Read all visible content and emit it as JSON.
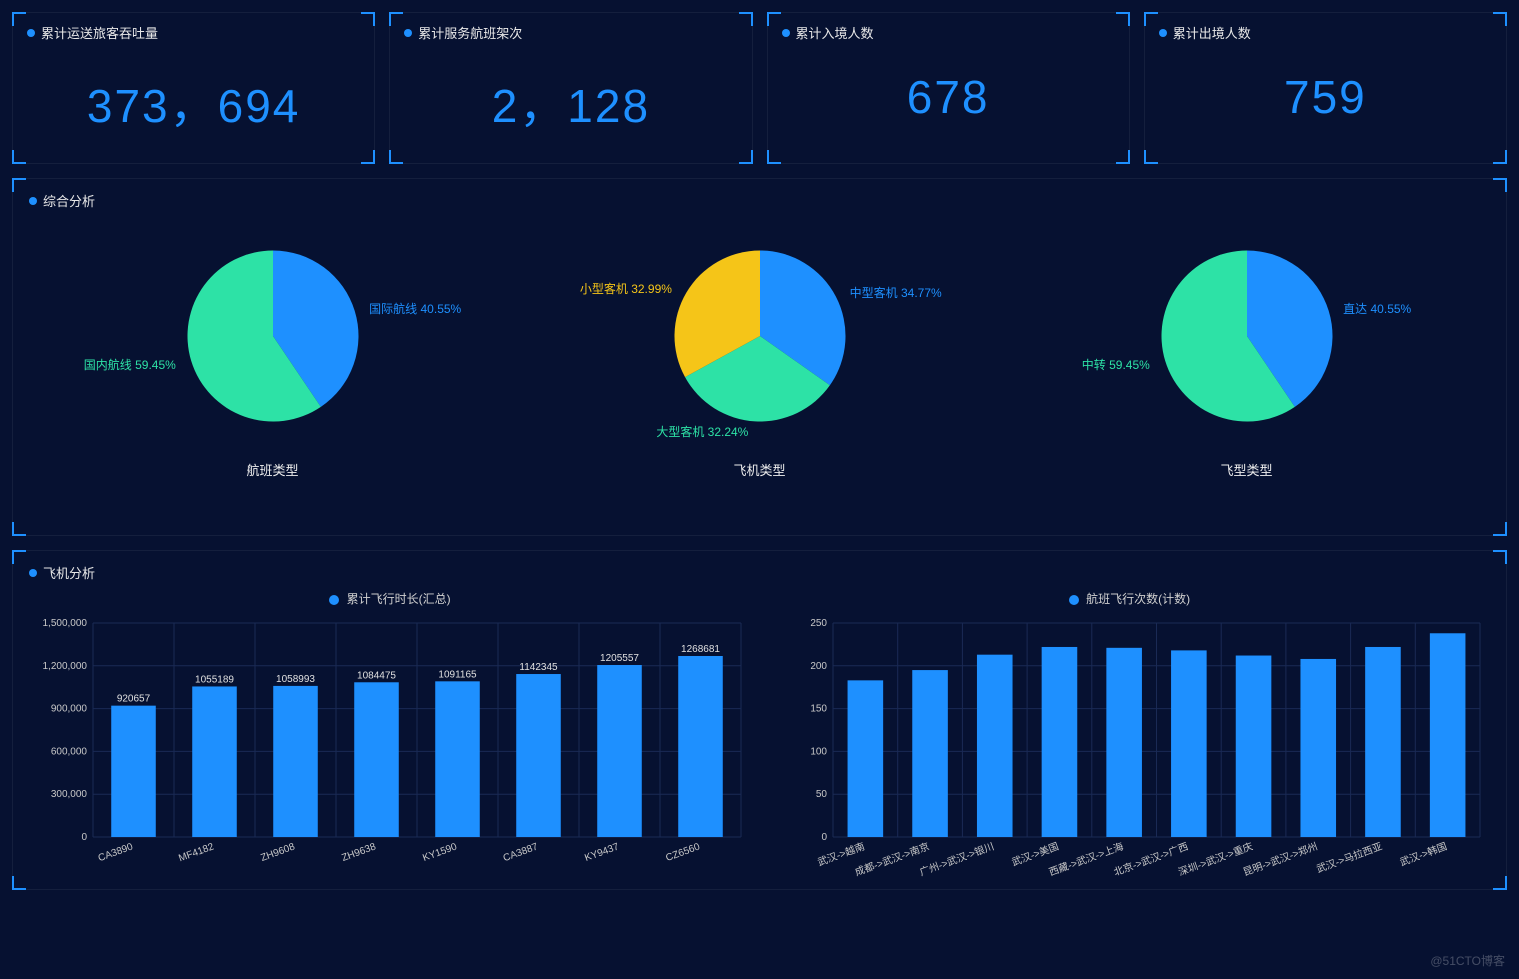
{
  "colors": {
    "background": "#061131",
    "accent": "#1e90ff",
    "grid": "#1a2a55",
    "text": "#e8e8e8"
  },
  "kpi": [
    {
      "title": "累计运送旅客吞吐量",
      "value": "373，694"
    },
    {
      "title": "累计服务航班架次",
      "value": "2，128"
    },
    {
      "title": "累计入境人数",
      "value": "678"
    },
    {
      "title": "累计出境人数",
      "value": "759"
    }
  ],
  "analysis_panel": {
    "title": "综合分析",
    "pies": [
      {
        "title": "航班类型",
        "slices": [
          {
            "label": "国际航线",
            "pct": 40.55,
            "color": "#1e90ff",
            "label_color": "#1e90ff"
          },
          {
            "label": "国内航线",
            "pct": 59.45,
            "color": "#2de2a6",
            "label_color": "#2de2a6"
          }
        ]
      },
      {
        "title": "飞机类型",
        "slices": [
          {
            "label": "中型客机",
            "pct": 34.77,
            "color": "#1e90ff",
            "label_color": "#1e90ff"
          },
          {
            "label": "大型客机",
            "pct": 32.24,
            "color": "#2de2a6",
            "label_color": "#2de2a6"
          },
          {
            "label": "小型客机",
            "pct": 32.99,
            "color": "#f5c518",
            "label_color": "#f5c518"
          }
        ]
      },
      {
        "title": "飞型类型",
        "slices": [
          {
            "label": "直达",
            "pct": 40.55,
            "color": "#1e90ff",
            "label_color": "#1e90ff"
          },
          {
            "label": "中转",
            "pct": 59.45,
            "color": "#2de2a6",
            "label_color": "#2de2a6"
          }
        ]
      }
    ]
  },
  "flight_panel": {
    "title": "飞机分析",
    "bar1": {
      "legend": "累计飞行时长(汇总)",
      "type": "bar",
      "bar_color": "#1e90ff",
      "ylim": [
        0,
        1500000
      ],
      "ytick_step": 300000,
      "ylabels": [
        "0",
        "300,000",
        "600,000",
        "900,000",
        "1,200,000",
        "1,500,000"
      ],
      "categories": [
        "CA3890",
        "MF4182",
        "ZH9608",
        "ZH9638",
        "KY1590",
        "CA3887",
        "KY9437",
        "CZ6560"
      ],
      "values": [
        920657,
        1055189,
        1058993,
        1084475,
        1091165,
        1142345,
        1205557,
        1268681
      ],
      "show_value_labels": true
    },
    "bar2": {
      "legend": "航班飞行次数(计数)",
      "type": "bar",
      "bar_color": "#1e90ff",
      "ylim": [
        0,
        250
      ],
      "ytick_step": 50,
      "ylabels": [
        "0",
        "50",
        "100",
        "150",
        "200",
        "250"
      ],
      "categories": [
        "武汉->越南",
        "成都->武汉->南京",
        "广州->武汉->银川",
        "武汉->美国",
        "西藏->武汉->上海",
        "北京->武汉->广西",
        "深圳->武汉->重庆",
        "昆明->武汉->郑州",
        "武汉->马拉西亚",
        "武汉->韩国"
      ],
      "values": [
        183,
        195,
        213,
        222,
        221,
        218,
        212,
        208,
        222,
        238
      ],
      "show_value_labels": false
    }
  },
  "watermark": "@51CTO博客"
}
